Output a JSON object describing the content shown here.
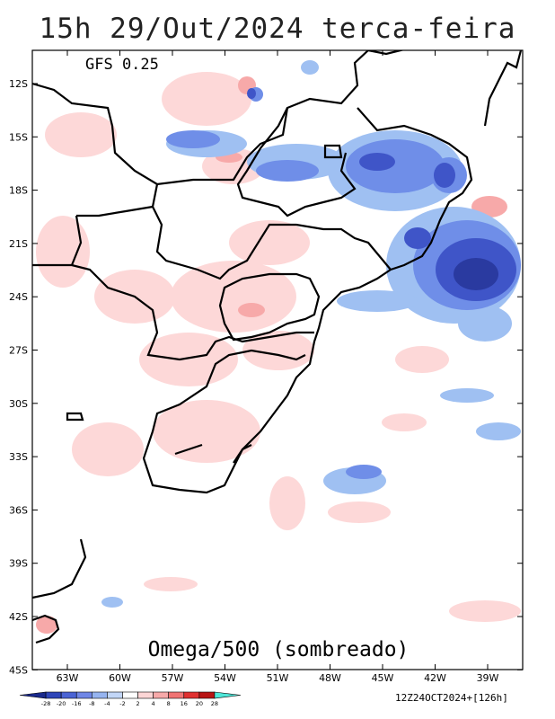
{
  "title": "15h 29/Out/2024 terca-feira",
  "model": "GFS 0.25",
  "variable": "Omega/500 (sombreado)",
  "run": "12Z24OCT2024+[126h]",
  "lat_labels": [
    "12S",
    "15S",
    "18S",
    "21S",
    "24S",
    "27S",
    "30S",
    "33S",
    "36S",
    "39S",
    "42S",
    "45S"
  ],
  "lon_labels": [
    "63W",
    "60W",
    "57W",
    "54W",
    "51W",
    "48W",
    "45W",
    "42W",
    "39W"
  ],
  "colorbar": {
    "labels": [
      "-28",
      "-20",
      "-16",
      "-8",
      "-4",
      "-2",
      "2",
      "4",
      "8",
      "16",
      "20",
      "28"
    ],
    "colors": [
      "#1a2a8c",
      "#2e45b8",
      "#4a63d4",
      "#6f86e6",
      "#96b4f0",
      "#c2d6f7",
      "#ffffff",
      "#fcd5d5",
      "#f7a9a9",
      "#f07373",
      "#e03030",
      "#b81414",
      "#4fe6d8"
    ]
  },
  "colors": {
    "frame": "#000000",
    "blue_strong": "#3f55c8",
    "blue_mid": "#6f8ee8",
    "blue_light": "#9fc0f2",
    "pink_light": "#fdd6d6",
    "pink_mid": "#f7a9a9",
    "red": "#e03838"
  }
}
